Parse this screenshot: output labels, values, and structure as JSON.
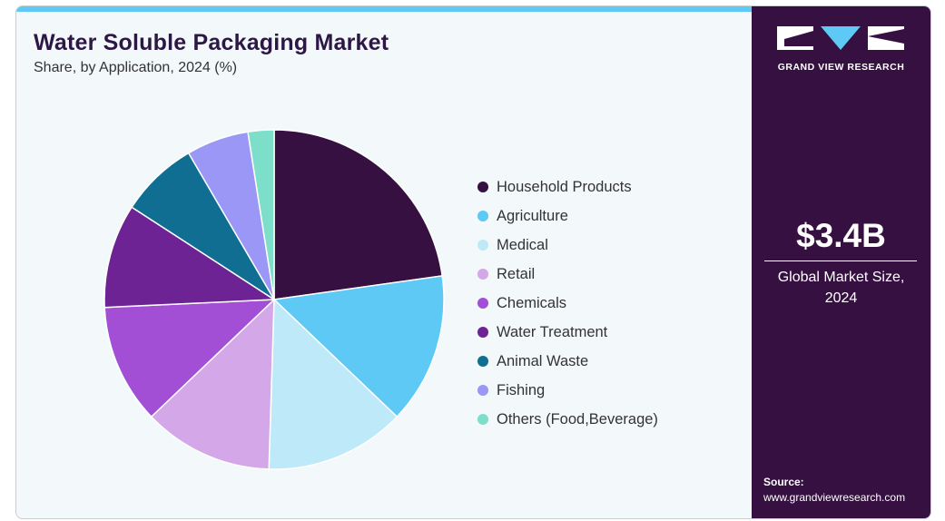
{
  "header": {
    "title": "Water Soluble Packaging Market",
    "subtitle": "Share, by Application, 2024 (%)"
  },
  "chart_data": {
    "type": "pie",
    "categories": [
      "Household Products",
      "Agriculture",
      "Medical",
      "Retail",
      "Chemicals",
      "Water Treatment",
      "Animal Waste",
      "Fishing",
      "Others (Food,Beverage)"
    ],
    "values": [
      23.0,
      14.5,
      13.5,
      12.5,
      11.5,
      10.0,
      7.5,
      6.0,
      2.5
    ],
    "colors": [
      "#351040",
      "#5ec9f4",
      "#bde9f8",
      "#d4a8e8",
      "#a24fd6",
      "#6e2394",
      "#0f6e92",
      "#9a97f7",
      "#7ddfca"
    ],
    "start_angle": "12 o'clock, clockwise",
    "legend_position": "right"
  },
  "side_panel": {
    "brand_name": "GRAND VIEW RESEARCH",
    "market_value": "$3.4B",
    "market_caption": "Global Market Size, 2024",
    "source_label": "Source:",
    "source_url": "www.grandviewresearch.com"
  }
}
